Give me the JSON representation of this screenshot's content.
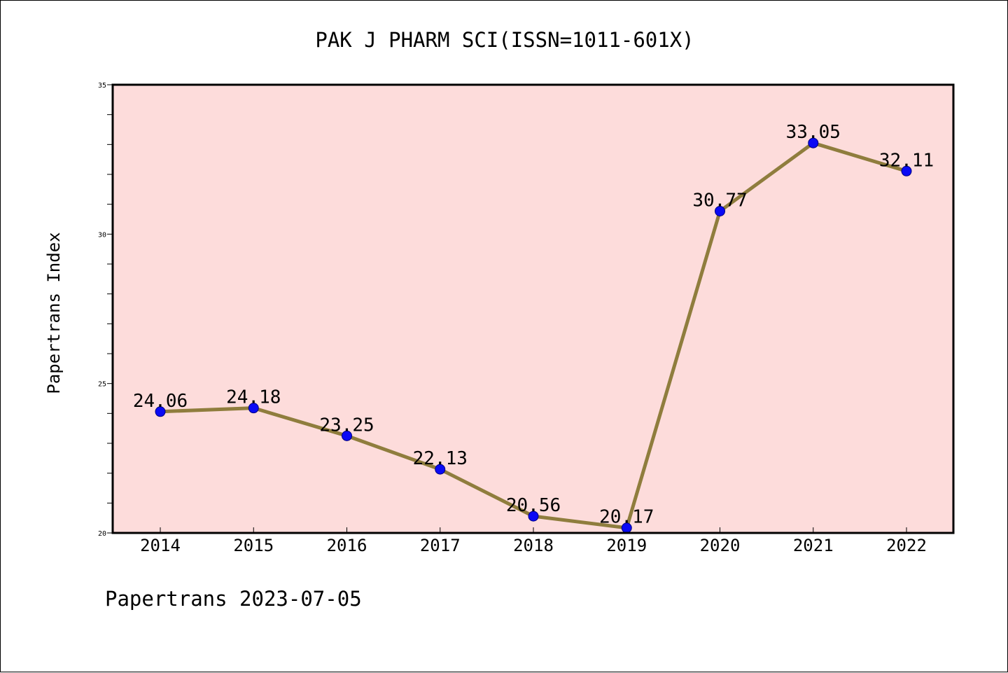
{
  "chart_data": {
    "type": "line",
    "title": "PAK J PHARM SCI(ISSN=1011-601X)",
    "ylabel": "Papertrans Index",
    "xlabel": "",
    "footer": "Papertrans 2023-07-05",
    "categories": [
      "2014",
      "2015",
      "2016",
      "2017",
      "2018",
      "2019",
      "2020",
      "2021",
      "2022"
    ],
    "values": [
      24.06,
      24.18,
      23.25,
      22.13,
      20.56,
      20.17,
      30.77,
      33.05,
      32.11
    ],
    "value_labels": [
      "24.06",
      "24.18",
      "23.25",
      "22.13",
      "20.56",
      "20.17",
      "30.77",
      "33.05",
      "32.11"
    ],
    "ylim": [
      20,
      35
    ],
    "y_major_ticks": [
      20,
      25,
      30,
      35
    ],
    "y_minor_step": 1,
    "grid": false,
    "colors": {
      "plot_background": "#fddcdb",
      "line": "#8f7d3d",
      "marker": "#0a0af5",
      "marker_edge": "#000080"
    }
  }
}
